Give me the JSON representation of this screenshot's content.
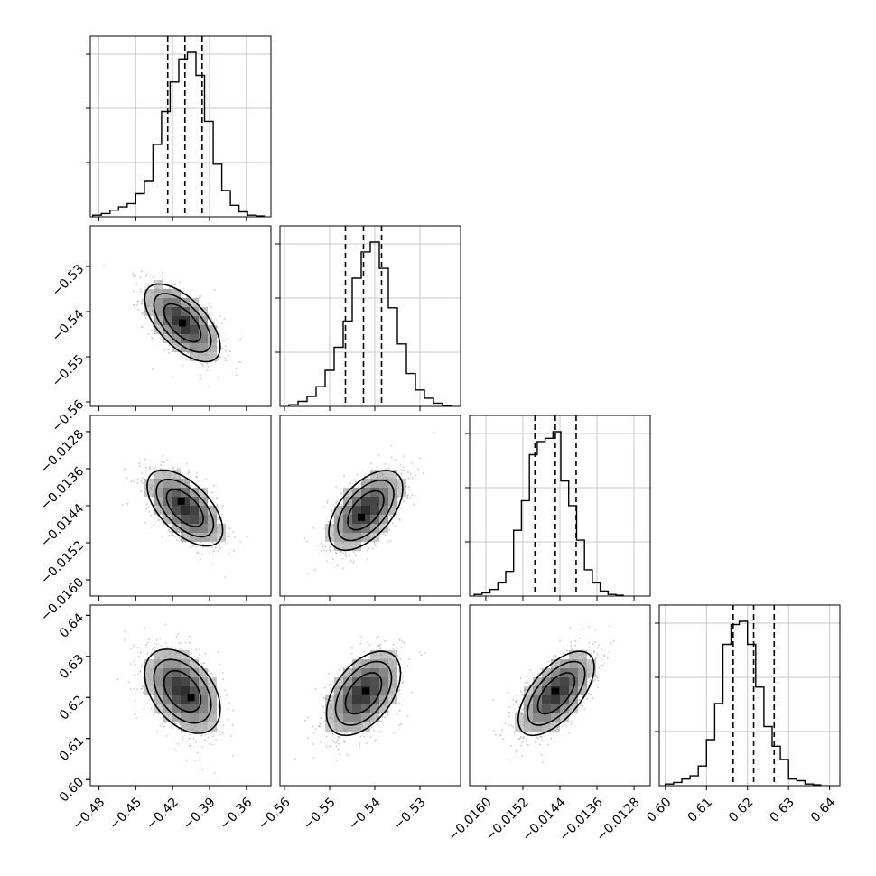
{
  "chart_data": {
    "type": "corner",
    "parameters": [
      {
        "range": [
          -0.487,
          -0.34
        ],
        "ticks": [
          "−0.48",
          "−0.45",
          "−0.42",
          "−0.39",
          "−0.36"
        ],
        "tick_values": [
          -0.48,
          -0.45,
          -0.42,
          -0.39,
          -0.36
        ],
        "quantiles": [
          -0.424,
          -0.41,
          -0.396
        ],
        "hist": {
          "edges_start": -0.485,
          "bin_width": 0.007,
          "counts": [
            1,
            2,
            4,
            6,
            8,
            14,
            22,
            44,
            64,
            82,
            96,
            100,
            86,
            58,
            32,
            16,
            7,
            3,
            1,
            0.5
          ]
        }
      },
      {
        "range": [
          -0.561,
          -0.521
        ],
        "ticks": [
          "−0.56",
          "−0.55",
          "−0.54",
          "−0.53"
        ],
        "tick_values": [
          -0.56,
          -0.55,
          -0.54,
          -0.53
        ],
        "quantiles": [
          -0.5465,
          -0.5425,
          -0.5385
        ],
        "hist": {
          "edges_start": -0.559,
          "bin_width": 0.002,
          "counts": [
            1,
            3,
            6,
            12,
            22,
            36,
            52,
            78,
            94,
            100,
            84,
            60,
            38,
            20,
            10,
            5,
            2,
            0.5
          ]
        }
      },
      {
        "range": [
          -0.01635,
          -0.01245
        ],
        "ticks": [
          "−0.0160",
          "−0.0152",
          "−0.0144",
          "−0.0136",
          "−0.0128"
        ],
        "tick_values": [
          -0.016,
          -0.0152,
          -0.0144,
          -0.0136,
          -0.0128
        ],
        "quantiles": [
          -0.01494,
          -0.0145,
          -0.01405
        ],
        "hist": {
          "edges_start": -0.01625,
          "bin_width": 0.00017,
          "counts": [
            1,
            2,
            4,
            8,
            15,
            40,
            58,
            86,
            94,
            96,
            100,
            70,
            55,
            34,
            16,
            8,
            3,
            1,
            0.5
          ]
        }
      },
      {
        "range": [
          0.5985,
          0.6425
        ],
        "ticks": [
          "0.60",
          "0.61",
          "0.62",
          "0.63",
          "0.64"
        ],
        "tick_values": [
          0.6,
          0.61,
          0.62,
          0.63,
          0.64
        ],
        "quantiles": [
          0.6165,
          0.6215,
          0.6265
        ],
        "hist": {
          "edges_start": 0.6,
          "bin_width": 0.002,
          "counts": [
            1,
            2,
            4,
            6,
            12,
            28,
            50,
            86,
            98,
            100,
            86,
            60,
            36,
            24,
            16,
            4,
            3,
            1,
            0.5
          ]
        }
      }
    ],
    "pairs": [
      {
        "x": 0,
        "y": 1,
        "mean": [
          -0.412,
          -0.5425
        ],
        "sd": [
          0.015,
          0.0042
        ],
        "corr": -0.62,
        "peak": [
          -0.412,
          -0.5425
        ]
      },
      {
        "x": 0,
        "y": 2,
        "mean": [
          -0.41,
          -0.01445
        ],
        "sd": [
          0.015,
          0.0004
        ],
        "corr": -0.58,
        "peak": [
          -0.413,
          -0.0143
        ]
      },
      {
        "x": 1,
        "y": 2,
        "mean": [
          -0.542,
          -0.0145
        ],
        "sd": [
          0.004,
          0.00042
        ],
        "corr": 0.55,
        "peak": [
          -0.543,
          -0.01465
        ]
      },
      {
        "x": 0,
        "y": 3,
        "mean": [
          -0.412,
          0.6215
        ],
        "sd": [
          0.015,
          0.005
        ],
        "corr": -0.42,
        "peak": [
          -0.405,
          0.62
        ]
      },
      {
        "x": 1,
        "y": 3,
        "mean": [
          -0.5425,
          0.621
        ],
        "sd": [
          0.004,
          0.005
        ],
        "corr": 0.48,
        "peak": [
          -0.542,
          0.6215
        ]
      },
      {
        "x": 2,
        "y": 3,
        "mean": [
          -0.01448,
          0.621
        ],
        "sd": [
          0.0004,
          0.005
        ],
        "corr": 0.62,
        "peak": [
          -0.0145,
          0.6215
        ]
      }
    ]
  }
}
